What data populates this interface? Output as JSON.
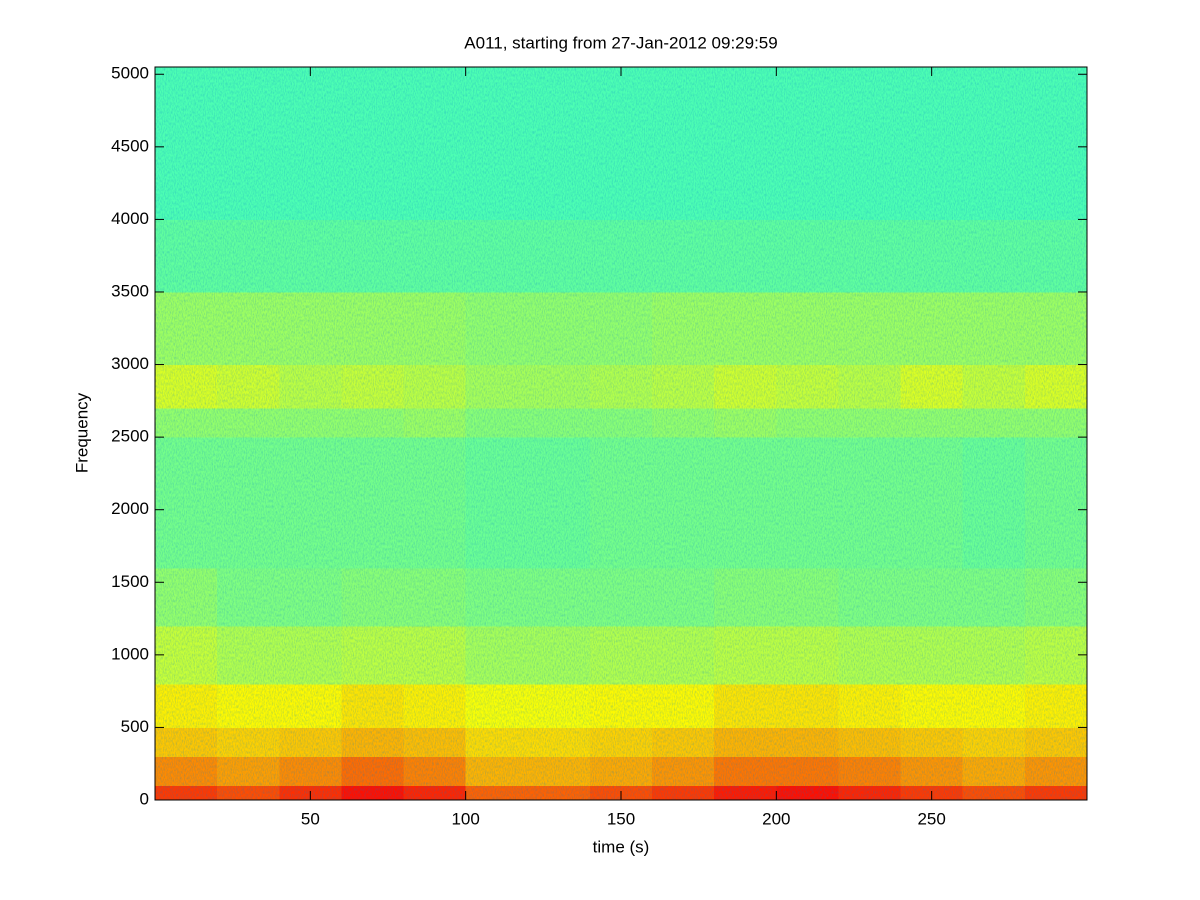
{
  "chart_data": {
    "type": "heatmap",
    "title": "A011, starting from 27-Jan-2012 09:29:59",
    "x_label": "time (s)",
    "y_label": "Frequency",
    "colormap": "jet",
    "clim": [
      0,
      1
    ],
    "xlim": [
      0,
      300
    ],
    "ylim": [
      0,
      5050
    ],
    "xticks": [
      50,
      100,
      150,
      200,
      250
    ],
    "yticks": [
      0,
      500,
      1000,
      1500,
      2000,
      2500,
      3000,
      3500,
      4000,
      4500,
      5000
    ],
    "x_edges": [
      0,
      20,
      40,
      60,
      80,
      100,
      120,
      140,
      160,
      180,
      200,
      220,
      240,
      260,
      280,
      300
    ],
    "y_edges": [
      0,
      100,
      300,
      500,
      800,
      1200,
      1600,
      2500,
      2700,
      3000,
      3500,
      4000,
      5050
    ],
    "z": [
      [
        0.82,
        0.8,
        0.83,
        0.86,
        0.84,
        0.78,
        0.78,
        0.8,
        0.82,
        0.85,
        0.86,
        0.84,
        0.82,
        0.8,
        0.82
      ],
      [
        0.74,
        0.72,
        0.74,
        0.77,
        0.75,
        0.7,
        0.7,
        0.71,
        0.73,
        0.76,
        0.76,
        0.75,
        0.73,
        0.71,
        0.73
      ],
      [
        0.68,
        0.67,
        0.68,
        0.7,
        0.69,
        0.66,
        0.66,
        0.67,
        0.68,
        0.7,
        0.7,
        0.69,
        0.68,
        0.67,
        0.68
      ],
      [
        0.64,
        0.63,
        0.63,
        0.65,
        0.64,
        0.62,
        0.62,
        0.63,
        0.63,
        0.65,
        0.65,
        0.64,
        0.63,
        0.63,
        0.64
      ],
      [
        0.57,
        0.55,
        0.55,
        0.56,
        0.56,
        0.54,
        0.54,
        0.55,
        0.55,
        0.56,
        0.56,
        0.55,
        0.55,
        0.55,
        0.56
      ],
      [
        0.52,
        0.5,
        0.5,
        0.51,
        0.51,
        0.5,
        0.5,
        0.5,
        0.5,
        0.51,
        0.51,
        0.5,
        0.5,
        0.5,
        0.51
      ],
      [
        0.49,
        0.49,
        0.49,
        0.49,
        0.49,
        0.48,
        0.48,
        0.49,
        0.49,
        0.49,
        0.49,
        0.49,
        0.49,
        0.48,
        0.49
      ],
      [
        0.52,
        0.52,
        0.52,
        0.52,
        0.53,
        0.51,
        0.51,
        0.51,
        0.52,
        0.53,
        0.52,
        0.52,
        0.52,
        0.52,
        0.52
      ],
      [
        0.59,
        0.58,
        0.56,
        0.57,
        0.56,
        0.54,
        0.54,
        0.55,
        0.56,
        0.58,
        0.57,
        0.56,
        0.59,
        0.57,
        0.59
      ],
      [
        0.53,
        0.53,
        0.53,
        0.53,
        0.53,
        0.52,
        0.52,
        0.52,
        0.53,
        0.53,
        0.53,
        0.53,
        0.53,
        0.53,
        0.53
      ],
      [
        0.47,
        0.47,
        0.47,
        0.47,
        0.47,
        0.47,
        0.47,
        0.47,
        0.47,
        0.47,
        0.47,
        0.47,
        0.47,
        0.47,
        0.47
      ],
      [
        0.45,
        0.45,
        0.45,
        0.45,
        0.45,
        0.45,
        0.45,
        0.45,
        0.45,
        0.45,
        0.45,
        0.45,
        0.45,
        0.45,
        0.45
      ]
    ]
  }
}
